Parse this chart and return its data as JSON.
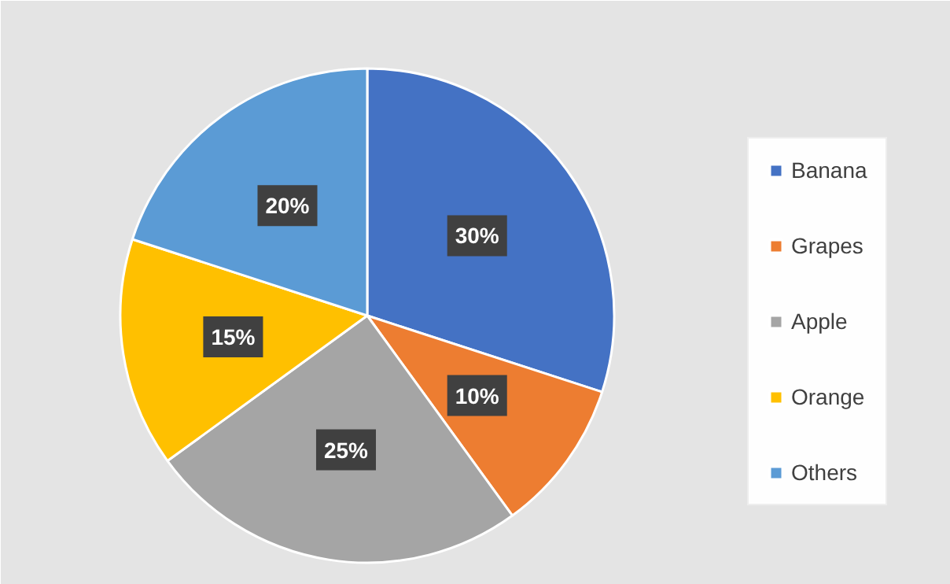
{
  "chart_data": {
    "type": "pie",
    "categories": [
      "Banana",
      "Grapes",
      "Apple",
      "Orange",
      "Others"
    ],
    "values": [
      30,
      10,
      25,
      15,
      20
    ],
    "colors": [
      "#4472c4",
      "#ed7d31",
      "#a5a5a5",
      "#ffc000",
      "#5b9bd5"
    ],
    "value_labels": [
      "30%",
      "10%",
      "25%",
      "15%",
      "20%"
    ],
    "legend": "right"
  }
}
